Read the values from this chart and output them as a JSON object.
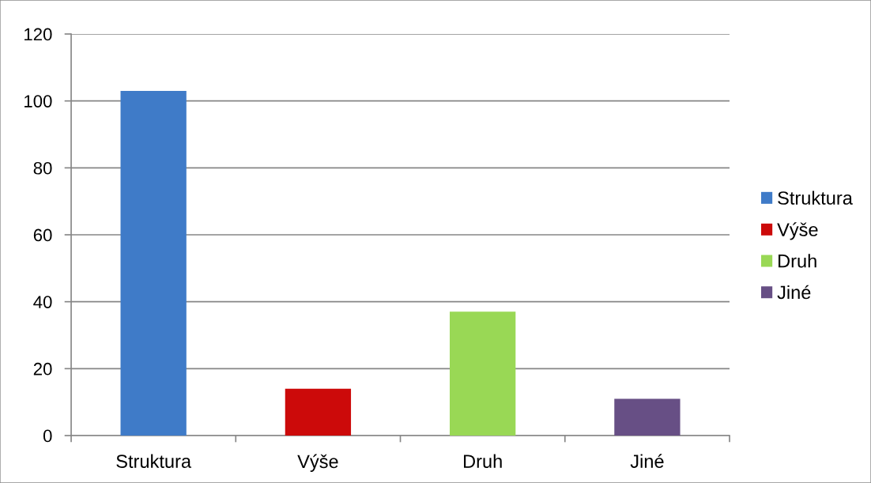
{
  "chart_data": {
    "type": "bar",
    "categories": [
      "Struktura",
      "Výše",
      "Druh",
      "Jiné"
    ],
    "series": [
      {
        "name": "Struktura",
        "color": "#3f7bc8",
        "values": [
          103,
          null,
          null,
          null
        ]
      },
      {
        "name": "Výše",
        "color": "#cc0a0a",
        "values": [
          null,
          14,
          null,
          null
        ]
      },
      {
        "name": "Druh",
        "color": "#99d855",
        "values": [
          null,
          null,
          37,
          null
        ]
      },
      {
        "name": "Jiné",
        "color": "#674f85",
        "values": [
          null,
          null,
          null,
          11
        ]
      }
    ],
    "stacked": true,
    "ylim": [
      0,
      120
    ],
    "yticks": [
      0,
      20,
      40,
      60,
      80,
      100,
      120
    ],
    "grid": "y",
    "legend": "right"
  }
}
